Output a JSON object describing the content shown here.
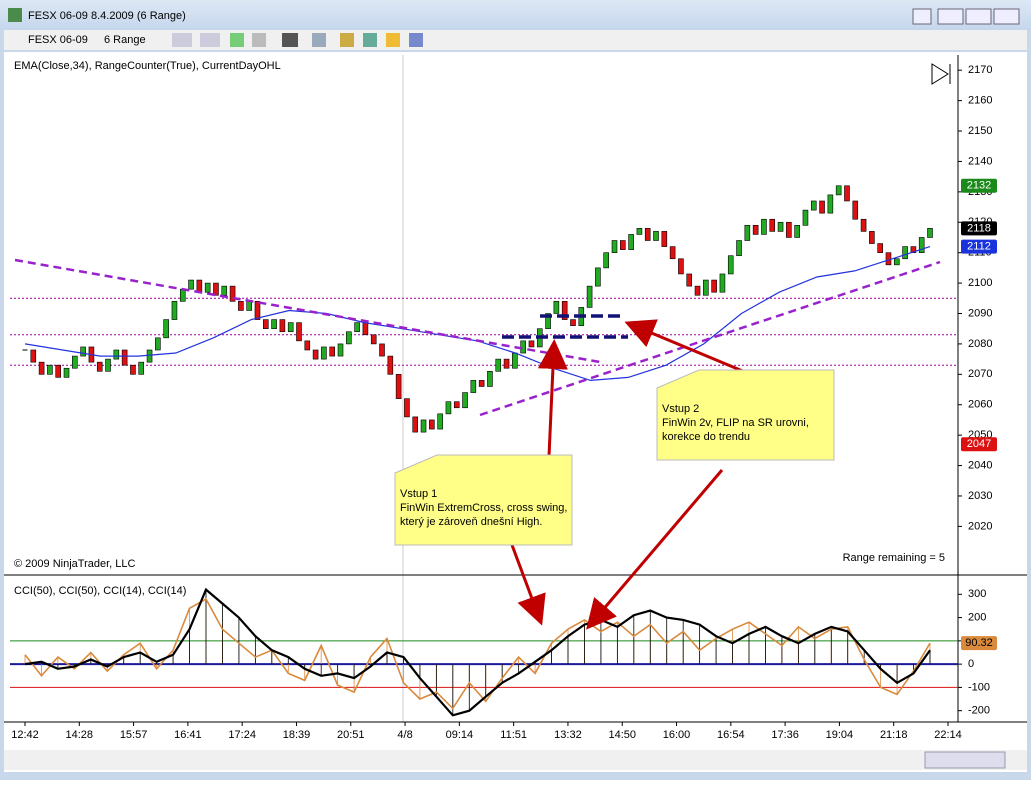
{
  "window": {
    "title": "FESX 06-09  8.4.2009 (6 Range)"
  },
  "toolbar": {
    "instrument": "FESX 06-09",
    "period": "6 Range"
  },
  "copyright": "© 2009 NinjaTrader, LLC",
  "range_remaining": "Range remaining = 5",
  "time_labels": [
    "12:42",
    "14:28",
    "15:57",
    "16:41",
    "17:24",
    "18:39",
    "20:51",
    "4/8",
    "09:14",
    "11:51",
    "13:32",
    "14:50",
    "16:00",
    "16:54",
    "17:36",
    "19:04",
    "21:18",
    "22:14"
  ],
  "notes": [
    {
      "title": "Vstup 1",
      "lines": [
        "FinWin ExtremCross, cross swing,",
        "který je zároveň dnešní High."
      ]
    },
    {
      "title": "Vstup 2",
      "lines": [
        "FinWin 2v, FLIP na SR urovni,",
        "korekce do trendu"
      ]
    }
  ],
  "chart_data": [
    {
      "type": "candlestick",
      "title": "EMA(Close,34), RangeCounter(True), CurrentDayOHL",
      "ylim": [
        2005,
        2175
      ],
      "yticks": [
        2020,
        2030,
        2040,
        2050,
        2060,
        2070,
        2080,
        2090,
        2100,
        2110,
        2120,
        2130,
        2140,
        2150,
        2160,
        2170
      ],
      "candles": {
        "up_color": "#22aa22",
        "down_color": "#dd1111",
        "values": [
          2078,
          2074,
          2070,
          2073,
          2069,
          2072,
          2076,
          2079,
          2074,
          2071,
          2075,
          2078,
          2073,
          2070,
          2074,
          2078,
          2082,
          2088,
          2094,
          2098,
          2101,
          2097,
          2100,
          2096,
          2099,
          2094,
          2091,
          2094,
          2088,
          2085,
          2088,
          2084,
          2087,
          2081,
          2078,
          2075,
          2079,
          2076,
          2080,
          2084,
          2087,
          2083,
          2080,
          2076,
          2070,
          2062,
          2056,
          2051,
          2055,
          2052,
          2057,
          2061,
          2059,
          2064,
          2068,
          2066,
          2071,
          2075,
          2072,
          2077,
          2081,
          2079,
          2085,
          2090,
          2094,
          2088,
          2086,
          2092,
          2099,
          2105,
          2110,
          2114,
          2111,
          2116,
          2118,
          2114,
          2117,
          2112,
          2108,
          2103,
          2099,
          2096,
          2101,
          2097,
          2103,
          2109,
          2114,
          2119,
          2116,
          2121,
          2117,
          2120,
          2115,
          2119,
          2124,
          2127,
          2123,
          2129,
          2132,
          2127,
          2121,
          2117,
          2113,
          2110,
          2106,
          2108,
          2112,
          2110,
          2115,
          2118
        ]
      },
      "ema": {
        "color": "#2233dd",
        "values": [
          2080,
          2078,
          2076,
          2076,
          2077,
          2082,
          2088,
          2091,
          2090,
          2087,
          2085,
          2083,
          2081,
          2077,
          2072,
          2068,
          2069,
          2073,
          2080,
          2090,
          2097,
          2102,
          2104,
          2108,
          2112
        ]
      },
      "levels": [
        {
          "value": 2095,
          "color": "#990099"
        },
        {
          "value": 2083,
          "color": "#990099"
        },
        {
          "value": 2073,
          "color": "#990099"
        }
      ],
      "price_labels": [
        {
          "value": 2132,
          "color": "#1a8a1a",
          "text_color": "#ffffff"
        },
        {
          "value": 2118,
          "color": "#000000",
          "text_color": "#ffffff"
        },
        {
          "value": 2112,
          "color": "#1a33dd",
          "text_color": "#ffffff"
        },
        {
          "value": 2047,
          "color": "#dd1111",
          "text_color": "#ffffff"
        }
      ]
    },
    {
      "type": "line",
      "title": "CCI(50), CCI(50), CCI(14), CCI(14)",
      "ylim": [
        -240,
        370
      ],
      "yticks": [
        -200,
        -100,
        0,
        100,
        200,
        300
      ],
      "levels": [
        {
          "value": 100,
          "color": "#1a8a1a"
        },
        {
          "value": 0,
          "color": "#1a1a99"
        },
        {
          "value": -100,
          "color": "#dd1111"
        }
      ],
      "series": [
        {
          "color": "#d98a3d",
          "values": [
            40,
            -50,
            30,
            -20,
            50,
            -30,
            40,
            90,
            -20,
            60,
            240,
            280,
            150,
            90,
            30,
            60,
            -40,
            -70,
            80,
            -90,
            -120,
            30,
            110,
            -80,
            -150,
            -120,
            -190,
            -80,
            -160,
            -60,
            30,
            -40,
            90,
            150,
            190,
            140,
            180,
            120,
            170,
            90,
            140,
            60,
            110,
            150,
            180,
            130,
            80,
            160,
            110,
            150,
            160,
            20,
            -100,
            -130,
            -30,
            90
          ]
        },
        {
          "color": "#000000",
          "values": [
            0,
            10,
            -20,
            -10,
            20,
            -10,
            30,
            50,
            10,
            40,
            150,
            320,
            260,
            200,
            120,
            60,
            30,
            -20,
            -50,
            -40,
            -60,
            -10,
            50,
            30,
            -60,
            -140,
            -220,
            -200,
            -140,
            -80,
            -40,
            10,
            60,
            120,
            170,
            190,
            160,
            210,
            230,
            200,
            190,
            170,
            120,
            90,
            130,
            160,
            120,
            90,
            130,
            160,
            140,
            60,
            -20,
            -80,
            -40,
            60
          ]
        }
      ],
      "value_label": {
        "value": 90.32,
        "color": "#d98a3d"
      }
    }
  ]
}
